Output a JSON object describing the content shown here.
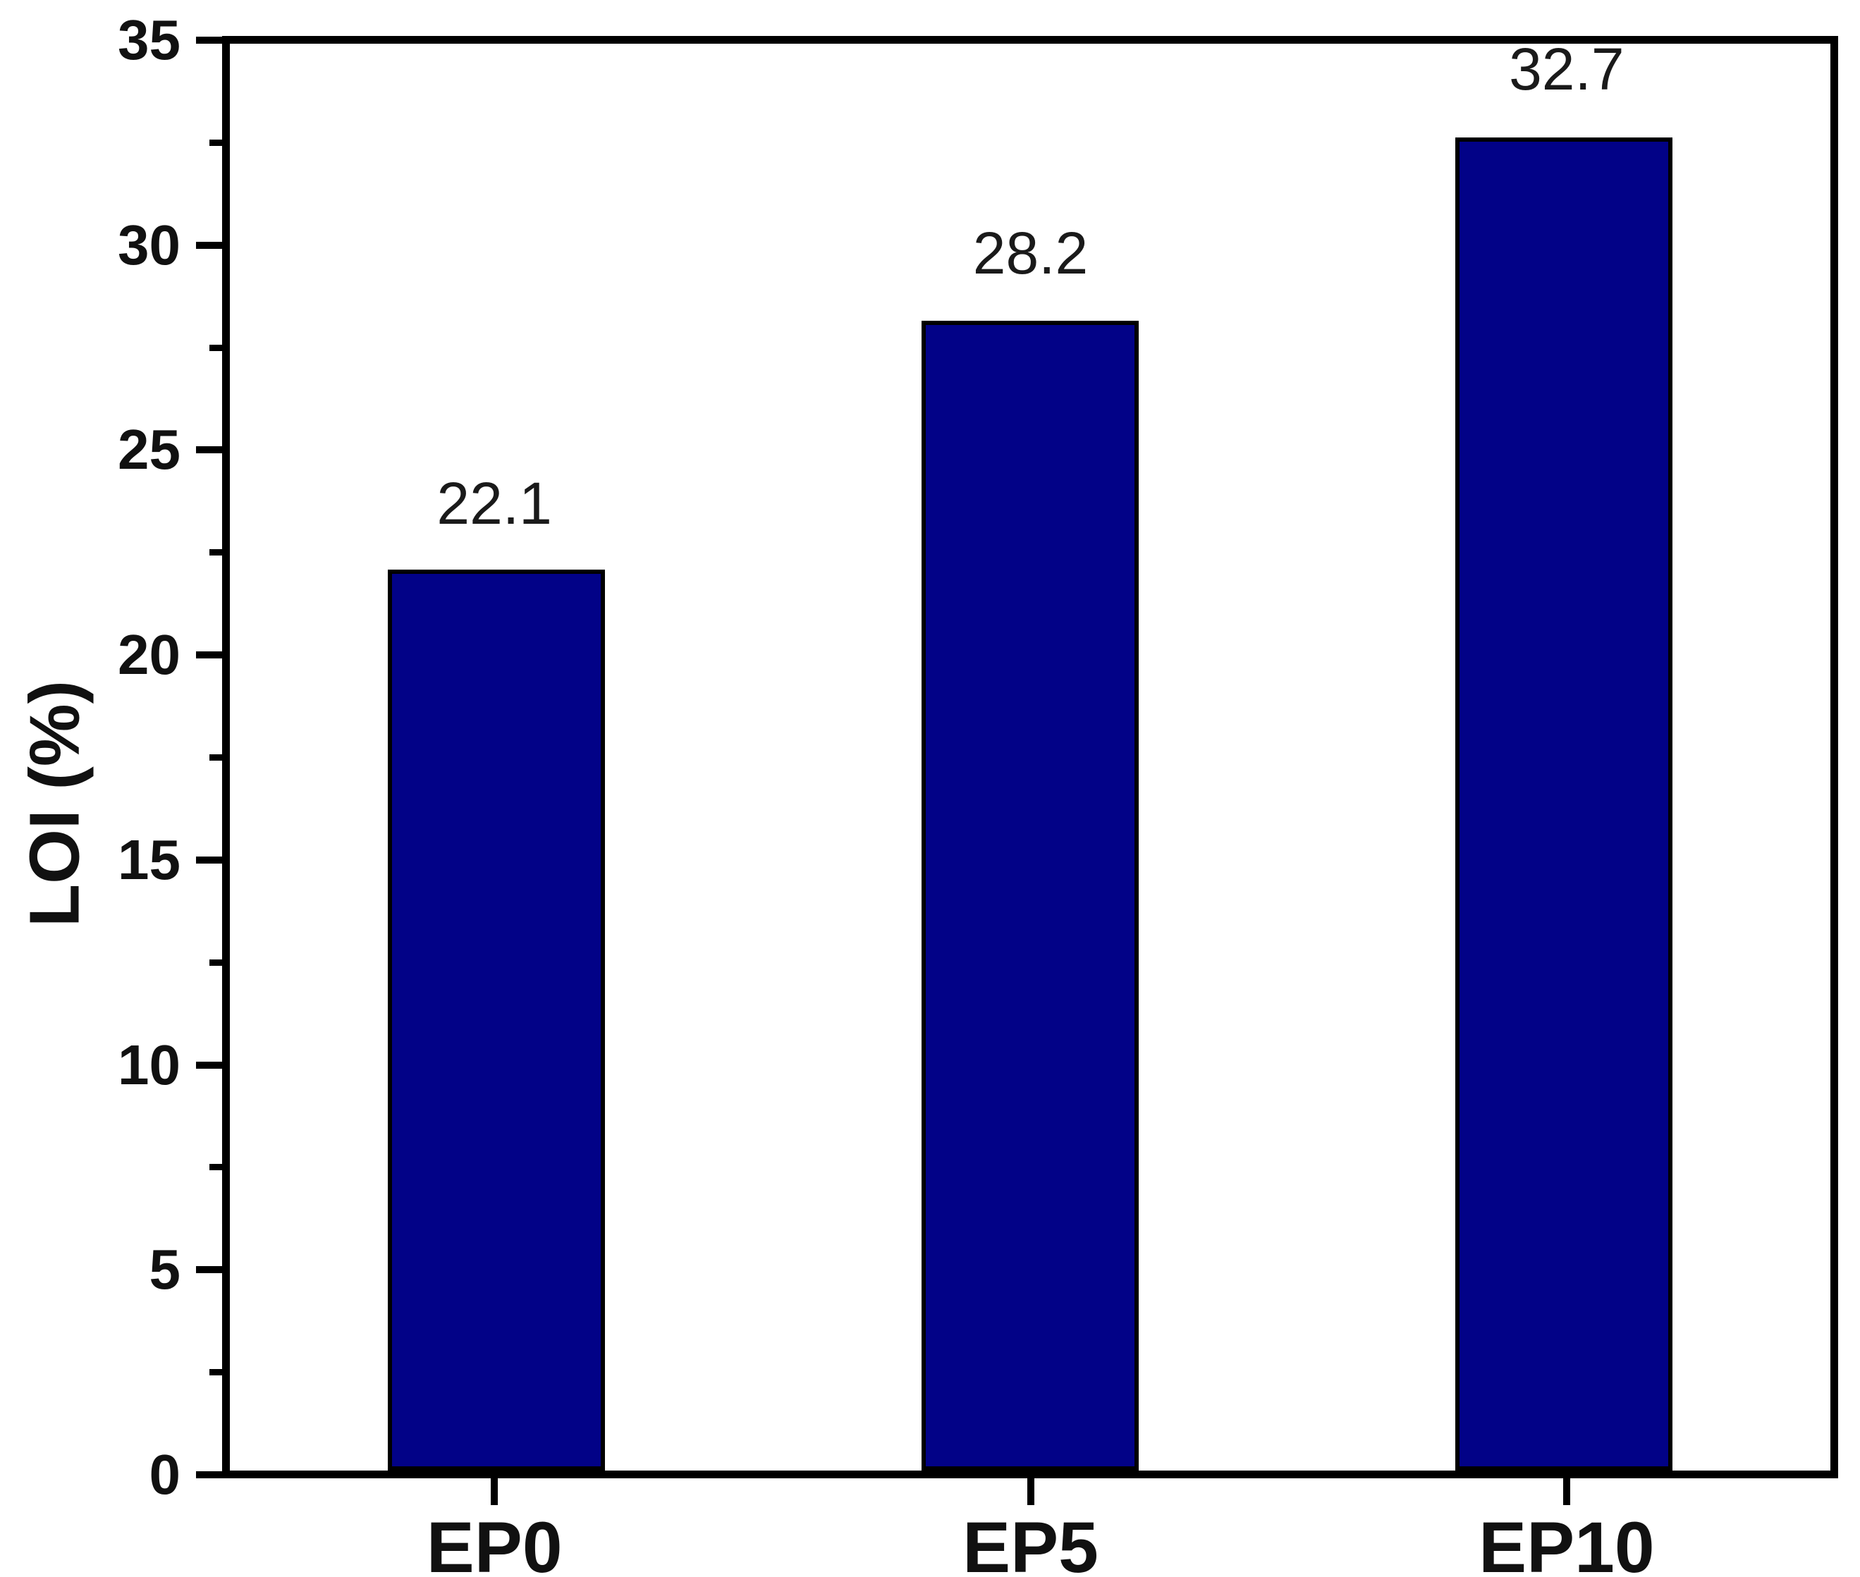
{
  "chart_data": {
    "type": "bar",
    "title": "",
    "xlabel": "",
    "ylabel": "LOI (%)",
    "categories": [
      "EP0",
      "EP5",
      "EP10"
    ],
    "values": [
      22.1,
      28.2,
      32.7
    ],
    "bar_value_labels": [
      "22.1",
      "28.2",
      "32.7"
    ],
    "ylim": [
      0,
      35
    ],
    "y_major_tick_labels": [
      "0",
      "5",
      "10",
      "15",
      "20",
      "25",
      "30",
      "35"
    ],
    "y_major_tick_step": 5,
    "y_minor_tick_step": 2.5,
    "grid": false,
    "legend_position": "none",
    "bar_color": "#020287",
    "bar_border_color": "#000000",
    "axis_color": "#000000",
    "tick_label_color": "#111111",
    "value_label_color": "#1a1a1a",
    "background_color": "#ffffff"
  }
}
